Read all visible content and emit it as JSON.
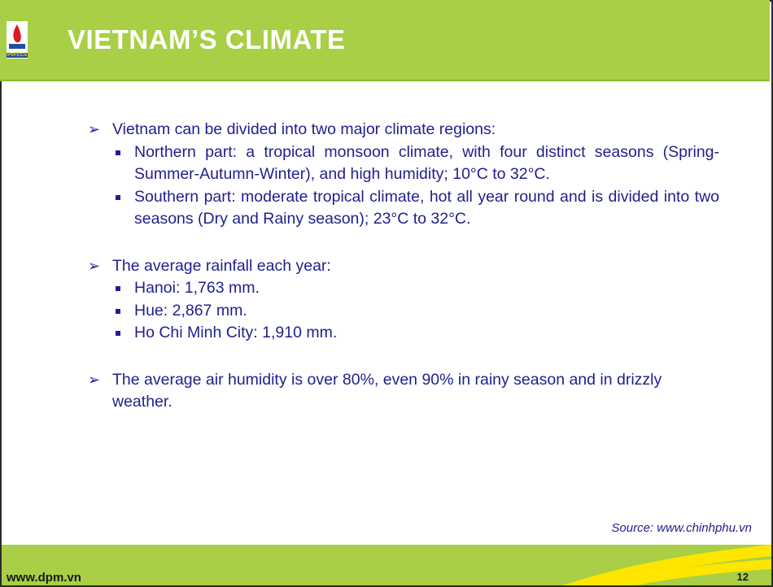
{
  "header": {
    "logo_text": "PVFCCo",
    "title": "VIETNAM’S  CLIMATE"
  },
  "sections": [
    {
      "text": "Vietnam can be divided into two major climate regions:",
      "items": [
        "Northern part: a tropical monsoon climate, with four distinct seasons (Spring-Summer-Autumn-Winter), and high humidity; 10°C to 32°C.",
        "Southern part: moderate tropical climate, hot all year round and is divided into two seasons (Dry and Rainy season); 23°C to 32°C."
      ]
    },
    {
      "text": "The average rainfall each year:",
      "items": [
        "Hanoi: 1,763 mm.",
        "Hue: 2,867 mm.",
        "Ho Chi Minh City: 1,910 mm."
      ]
    },
    {
      "text": "The average air humidity is over 80%, even 90% in rainy season and in drizzly weather.",
      "items": []
    }
  ],
  "source": "Source: www.chinhphu.vn",
  "footer": {
    "site": "www.dpm.vn",
    "page": "12"
  }
}
